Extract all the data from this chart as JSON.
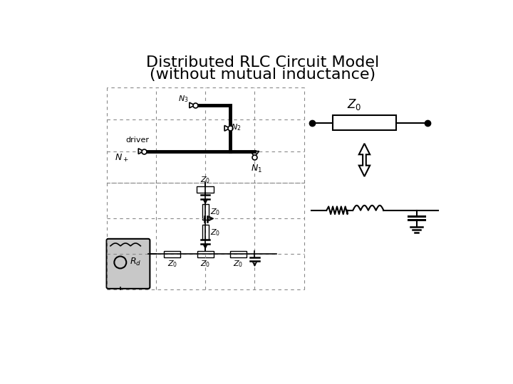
{
  "title_line1": "Distributed RLC Circuit Model",
  "title_line2": "(without mutual inductance)",
  "title_fontsize": 16,
  "bg_color": "#ffffff",
  "line_color": "#000000",
  "dashed_color": "#888888"
}
